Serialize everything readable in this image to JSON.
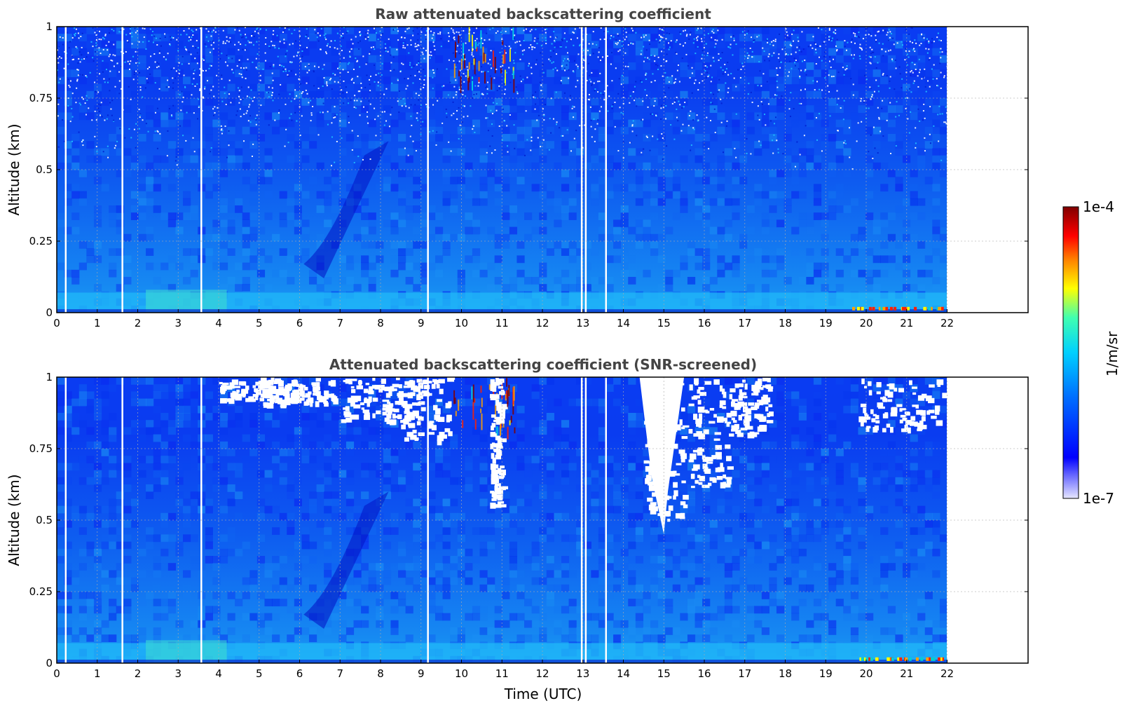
{
  "chart_data": [
    {
      "type": "heatmap",
      "title": "Raw attenuated backscattering coefficient",
      "ylabel": "Altitude (km)",
      "xlabel": "",
      "xlim": [
        0,
        24
      ],
      "ylim": [
        0,
        1
      ],
      "x_ticks": [
        "0",
        "1",
        "2",
        "3",
        "4",
        "5",
        "6",
        "7",
        "8",
        "9",
        "10",
        "11",
        "12",
        "13",
        "14",
        "15",
        "16",
        "17",
        "18",
        "19",
        "20",
        "21",
        "22"
      ],
      "y_ticks": [
        "0",
        "0.25",
        "0.5",
        "0.75",
        "1"
      ],
      "data_x_end": 22,
      "grid": true,
      "gaps_utc": [
        0.2,
        1.6,
        3.55,
        9.15,
        12.95,
        13.05,
        13.55
      ],
      "screened": false
    },
    {
      "type": "heatmap",
      "title": "Attenuated backscattering coefficient (SNR-screened)",
      "ylabel": "Altitude (km)",
      "xlabel": "Time (UTC)",
      "xlim": [
        0,
        24
      ],
      "ylim": [
        0,
        1
      ],
      "x_ticks": [
        "0",
        "1",
        "2",
        "3",
        "4",
        "5",
        "6",
        "7",
        "8",
        "9",
        "10",
        "11",
        "12",
        "13",
        "14",
        "15",
        "16",
        "17",
        "18",
        "19",
        "20",
        "21",
        "22"
      ],
      "y_ticks": [
        "0",
        "0.25",
        "0.5",
        "0.75",
        "1"
      ],
      "data_x_end": 22,
      "grid": true,
      "gaps_utc": [
        0.2,
        1.6,
        3.55,
        9.15,
        12.95,
        13.05,
        13.55
      ],
      "screened": true
    }
  ],
  "colorbar": {
    "label": "1/m/sr",
    "min_label": "1e-7",
    "max_label": "1e-4",
    "colormap": "jet",
    "colors": [
      "#e6e6ff",
      "#0000ff",
      "#00a0ff",
      "#00ffff",
      "#ffff00",
      "#ff8000",
      "#ff0000",
      "#800000"
    ]
  }
}
